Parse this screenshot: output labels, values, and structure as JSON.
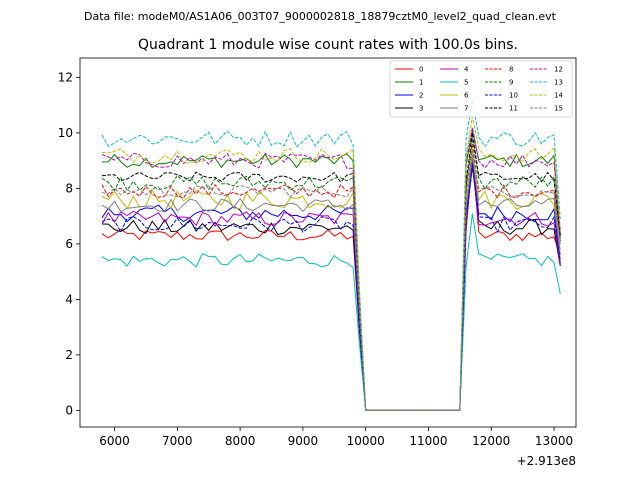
{
  "header": {
    "data_file": "Data file: modeM0/AS1A06_003T07_9000002818_18879cztM0_level2_quad_clean.evt"
  },
  "chart_data": {
    "type": "line",
    "title": "Quadrant 1 module wise count rates with 100.0s bins.",
    "xlabel": "",
    "ylabel": "",
    "x_offset_label": "+2.913e8",
    "xlim": [
      5450,
      13350
    ],
    "ylim": [
      -0.6,
      12.7
    ],
    "xticks": [
      6000,
      7000,
      8000,
      9000,
      10000,
      11000,
      12000,
      13000
    ],
    "yticks": [
      0,
      2,
      4,
      6,
      8,
      10,
      12
    ],
    "gap": [
      10000,
      11500
    ],
    "x_start": 5800,
    "dx": 100,
    "x_end": 13100,
    "legend": {
      "location": "top-right",
      "columns": 4,
      "entries": [
        "0",
        "1",
        "2",
        "3",
        "4",
        "5",
        "6",
        "7",
        "8",
        "9",
        "10",
        "11",
        "12",
        "13",
        "14",
        "15"
      ]
    },
    "series": [
      {
        "name": "0",
        "color": "#ff0000",
        "dash": false,
        "level": 6.3,
        "noise": 0.22,
        "end": 5.6,
        "post_peak": 9.2
      },
      {
        "name": "1",
        "color": "#008000",
        "dash": false,
        "level": 9.0,
        "noise": 0.25,
        "end": 6.3,
        "post_peak": 10.1
      },
      {
        "name": "2",
        "color": "#0000ff",
        "dash": false,
        "level": 7.1,
        "noise": 0.3,
        "end": 5.3,
        "post_peak": 9.0
      },
      {
        "name": "3",
        "color": "#000000",
        "dash": false,
        "level": 6.6,
        "noise": 0.28,
        "end": 5.2,
        "post_peak": 8.8
      },
      {
        "name": "4",
        "color": "#bf00bf",
        "dash": false,
        "level": 6.9,
        "noise": 0.28,
        "end": 5.3,
        "post_peak": 9.0
      },
      {
        "name": "5",
        "color": "#00bfbf",
        "dash": false,
        "level": 5.4,
        "noise": 0.25,
        "end": 4.2,
        "post_peak": 7.1
      },
      {
        "name": "6",
        "color": "#bfbf00",
        "dash": false,
        "level": 7.6,
        "noise": 0.35,
        "end": 5.8,
        "post_peak": 9.4
      },
      {
        "name": "7",
        "color": "#808080",
        "dash": false,
        "level": 7.4,
        "noise": 0.25,
        "end": 5.6,
        "post_peak": 9.2
      },
      {
        "name": "8",
        "color": "#ff0000",
        "dash": true,
        "level": 7.9,
        "noise": 0.25,
        "end": 6.1,
        "post_peak": 9.6
      },
      {
        "name": "9",
        "color": "#008000",
        "dash": true,
        "level": 8.2,
        "noise": 0.28,
        "end": 6.2,
        "post_peak": 9.8
      },
      {
        "name": "10",
        "color": "#0000ff",
        "dash": true,
        "level": 6.7,
        "noise": 0.28,
        "end": 5.4,
        "post_peak": 8.9
      },
      {
        "name": "11",
        "color": "#000000",
        "dash": true,
        "level": 8.4,
        "noise": 0.2,
        "end": 6.3,
        "post_peak": 10.0
      },
      {
        "name": "12",
        "color": "#bf00bf",
        "dash": true,
        "level": 9.0,
        "noise": 0.28,
        "end": 6.5,
        "post_peak": 10.2
      },
      {
        "name": "13",
        "color": "#00bfbf",
        "dash": true,
        "level": 9.8,
        "noise": 0.3,
        "end": 6.9,
        "post_peak": 11.2
      },
      {
        "name": "14",
        "color": "#bfbf00",
        "dash": true,
        "level": 9.2,
        "noise": 0.28,
        "end": 6.5,
        "post_peak": 10.6
      },
      {
        "name": "15",
        "color": "#808080",
        "dash": true,
        "level": 7.9,
        "noise": 0.22,
        "end": 6.0,
        "post_peak": 9.4
      }
    ]
  }
}
